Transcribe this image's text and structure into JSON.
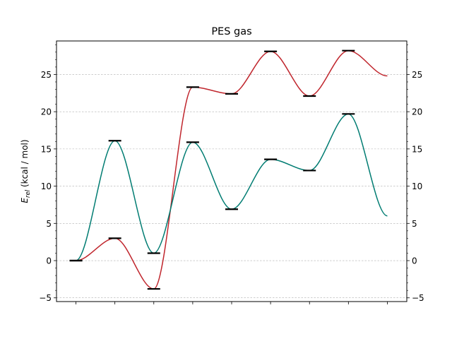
{
  "chart_data": {
    "type": "line",
    "title": "PES gas",
    "xlabel": "",
    "ylabel_main": "E",
    "ylabel_sub": "rel",
    "ylabel_unit": " (kcal / mol)",
    "ylim": [
      -5.5,
      29.5
    ],
    "xlim": [
      -0.5,
      8.5
    ],
    "yticks": [
      -5,
      0,
      5,
      10,
      15,
      20,
      25
    ],
    "grid": true,
    "grid_axis": "y",
    "x": [
      0,
      1,
      2,
      3,
      4,
      5,
      6,
      7,
      8
    ],
    "series": [
      {
        "color": "#c0262d",
        "values": [
          0,
          3.0,
          -3.8,
          23.3,
          22.4,
          28.1,
          22.1,
          28.2,
          24.8
        ],
        "marker_levels": [
          0,
          1,
          2,
          3,
          4,
          5,
          6,
          7
        ]
      },
      {
        "color": "#007c72",
        "values": [
          0,
          16.1,
          1.0,
          15.9,
          6.9,
          13.6,
          12.1,
          19.7,
          6.0
        ],
        "marker_levels": [
          0,
          1,
          2,
          3,
          4,
          5,
          6,
          7
        ]
      }
    ]
  }
}
